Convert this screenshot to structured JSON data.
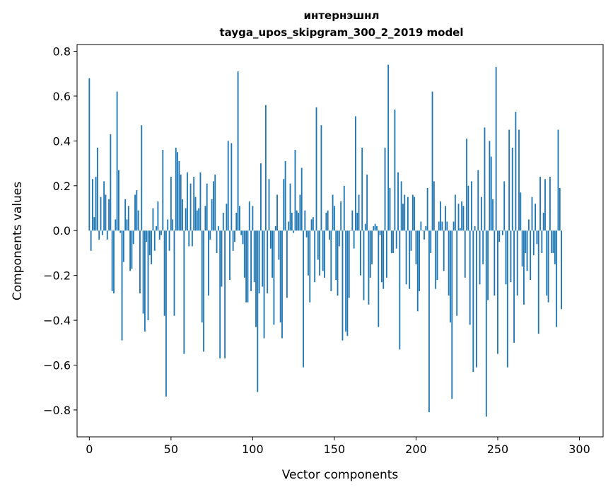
{
  "chart_data": {
    "type": "bar",
    "title": "интернэшнл",
    "subtitle": "tayga_upos_skipgram_300_2_2019 model",
    "xlabel": "Vector components",
    "ylabel": "Components values",
    "xlim": [
      -7.5,
      314.5
    ],
    "ylim": [
      -0.92,
      0.83
    ],
    "xticks": [
      0,
      50,
      100,
      150,
      200,
      250,
      300
    ],
    "xtick_labels": [
      "0",
      "50",
      "100",
      "150",
      "200",
      "250",
      "300"
    ],
    "yticks": [
      -0.8,
      -0.6,
      -0.4,
      -0.2,
      0.0,
      0.2,
      0.4,
      0.6,
      0.8
    ],
    "ytick_labels": [
      "−0.8",
      "−0.6",
      "−0.4",
      "−0.2",
      "0.0",
      "0.2",
      "0.4",
      "0.6",
      "0.8"
    ],
    "bar_color": "#1f77b4",
    "grid": false,
    "values": [
      0.68,
      -0.09,
      0.23,
      0.06,
      0.24,
      0.37,
      -0.04,
      0.15,
      -0.02,
      0.22,
      0.16,
      -0.04,
      0.14,
      0.43,
      -0.27,
      -0.28,
      0.05,
      0.62,
      0.27,
      -0.01,
      -0.49,
      -0.14,
      0.14,
      0.05,
      0.11,
      -0.18,
      -0.17,
      -0.06,
      0.16,
      0.18,
      0.09,
      -0.28,
      0.47,
      -0.37,
      -0.45,
      -0.05,
      -0.4,
      -0.11,
      -0.15,
      0.1,
      -0.09,
      0.02,
      0.13,
      -0.04,
      -0.02,
      0.36,
      -0.38,
      -0.74,
      0.05,
      -0.09,
      0.24,
      0.05,
      -0.38,
      0.37,
      0.35,
      0.31,
      0.25,
      0.14,
      -0.55,
      0.1,
      0.26,
      -0.07,
      0.21,
      -0.07,
      0.24,
      0.15,
      0.09,
      0.1,
      0.26,
      -0.41,
      -0.54,
      0.11,
      0.21,
      -0.29,
      -0.04,
      0.14,
      0.22,
      0.25,
      -0.1,
      0.02,
      -0.57,
      -0.25,
      0.08,
      -0.57,
      0.12,
      0.4,
      -0.22,
      0.39,
      -0.09,
      -0.05,
      0.08,
      0.71,
      0.11,
      -0.02,
      -0.06,
      -0.21,
      -0.32,
      -0.32,
      0.13,
      -0.27,
      0.11,
      -0.23,
      -0.43,
      -0.72,
      -0.28,
      0.3,
      -0.25,
      -0.48,
      0.56,
      -0.28,
      0.23,
      -0.08,
      -0.21,
      -0.42,
      0.02,
      0.16,
      -0.13,
      -0.41,
      -0.48,
      0.23,
      0.31,
      -0.3,
      0.04,
      0.21,
      0.08,
      -0.01,
      0.36,
      0.09,
      0.08,
      0.16,
      0.28,
      -0.61,
      0.09,
      -0.03,
      -0.2,
      -0.32,
      0.05,
      0.06,
      -0.23,
      0.55,
      -0.13,
      -0.2,
      0.47,
      -0.18,
      -0.21,
      0.08,
      0.09,
      -0.04,
      -0.27,
      0.16,
      0.11,
      -0.22,
      -0.29,
      -0.07,
      0.13,
      -0.49,
      0.2,
      -0.45,
      -0.47,
      -0.3,
      0.0,
      0.09,
      -0.08,
      0.51,
      0.08,
      0.16,
      -0.2,
      0.37,
      -0.31,
      0.03,
      0.25,
      -0.33,
      -0.21,
      -0.15,
      0.02,
      0.03,
      0.02,
      -0.43,
      -0.02,
      -0.23,
      -0.26,
      0.37,
      -0.21,
      0.74,
      0.19,
      -0.1,
      -0.1,
      0.54,
      -0.08,
      0.26,
      -0.53,
      0.22,
      0.12,
      0.16,
      -0.24,
      0.15,
      -0.26,
      -0.09,
      0.16,
      0.15,
      -0.15,
      -0.36,
      -0.27,
      0.04,
      0.0,
      -0.04,
      0.02,
      0.19,
      -0.81,
      -0.1,
      0.62,
      0.22,
      -0.26,
      -0.22,
      0.04,
      0.13,
      0.04,
      -0.18,
      0.11,
      0.04,
      -0.29,
      -0.41,
      -0.75,
      0.04,
      0.16,
      -0.38,
      0.12,
      0.01,
      0.13,
      0.11,
      -0.21,
      0.41,
      0.2,
      -0.42,
      0.22,
      -0.63,
      0.02,
      -0.61,
      0.27,
      -0.24,
      0.15,
      -0.15,
      0.46,
      -0.83,
      -0.31,
      0.4,
      0.33,
      0.14,
      -0.29,
      0.73,
      -0.55,
      -0.05,
      0.0,
      -0.02,
      0.22,
      -0.24,
      -0.61,
      0.45,
      -0.23,
      0.37,
      -0.5,
      0.53,
      -0.29,
      0.45,
      0.17,
      -0.16,
      -0.33,
      -0.1,
      -0.18,
      0.05,
      -0.22,
      0.15,
      -0.11,
      0.12,
      -0.06,
      -0.46,
      0.24,
      -0.1,
      0.08,
      0.23,
      -0.29,
      -0.32,
      0.24,
      -0.1,
      -0.1,
      -0.15,
      -0.43,
      0.45,
      0.19,
      -0.35
    ]
  }
}
